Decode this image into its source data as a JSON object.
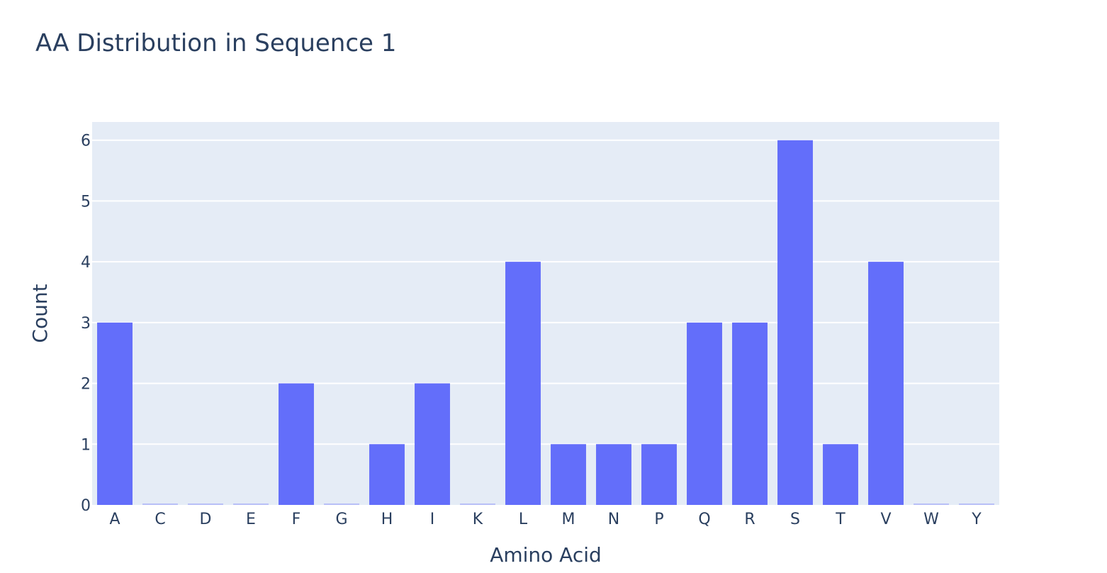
{
  "chart_data": {
    "type": "bar",
    "title": "AA Distribution in Sequence 1",
    "xlabel": "Amino Acid",
    "ylabel": "Count",
    "categories": [
      "A",
      "C",
      "D",
      "E",
      "F",
      "G",
      "H",
      "I",
      "K",
      "L",
      "M",
      "N",
      "P",
      "Q",
      "R",
      "S",
      "T",
      "V",
      "W",
      "Y"
    ],
    "values": [
      3,
      0,
      0,
      0,
      2,
      0,
      1,
      2,
      0,
      4,
      1,
      1,
      1,
      3,
      3,
      6,
      1,
      4,
      0,
      0
    ],
    "ylim": [
      0,
      6.3
    ],
    "yticks": [
      "0",
      "1",
      "2",
      "3",
      "4",
      "5",
      "6"
    ],
    "grid": true,
    "colors": {
      "bar": "#636efa",
      "plot_bg": "#e5ecf6",
      "grid": "#ffffff",
      "text": "#2a3f5f"
    }
  }
}
